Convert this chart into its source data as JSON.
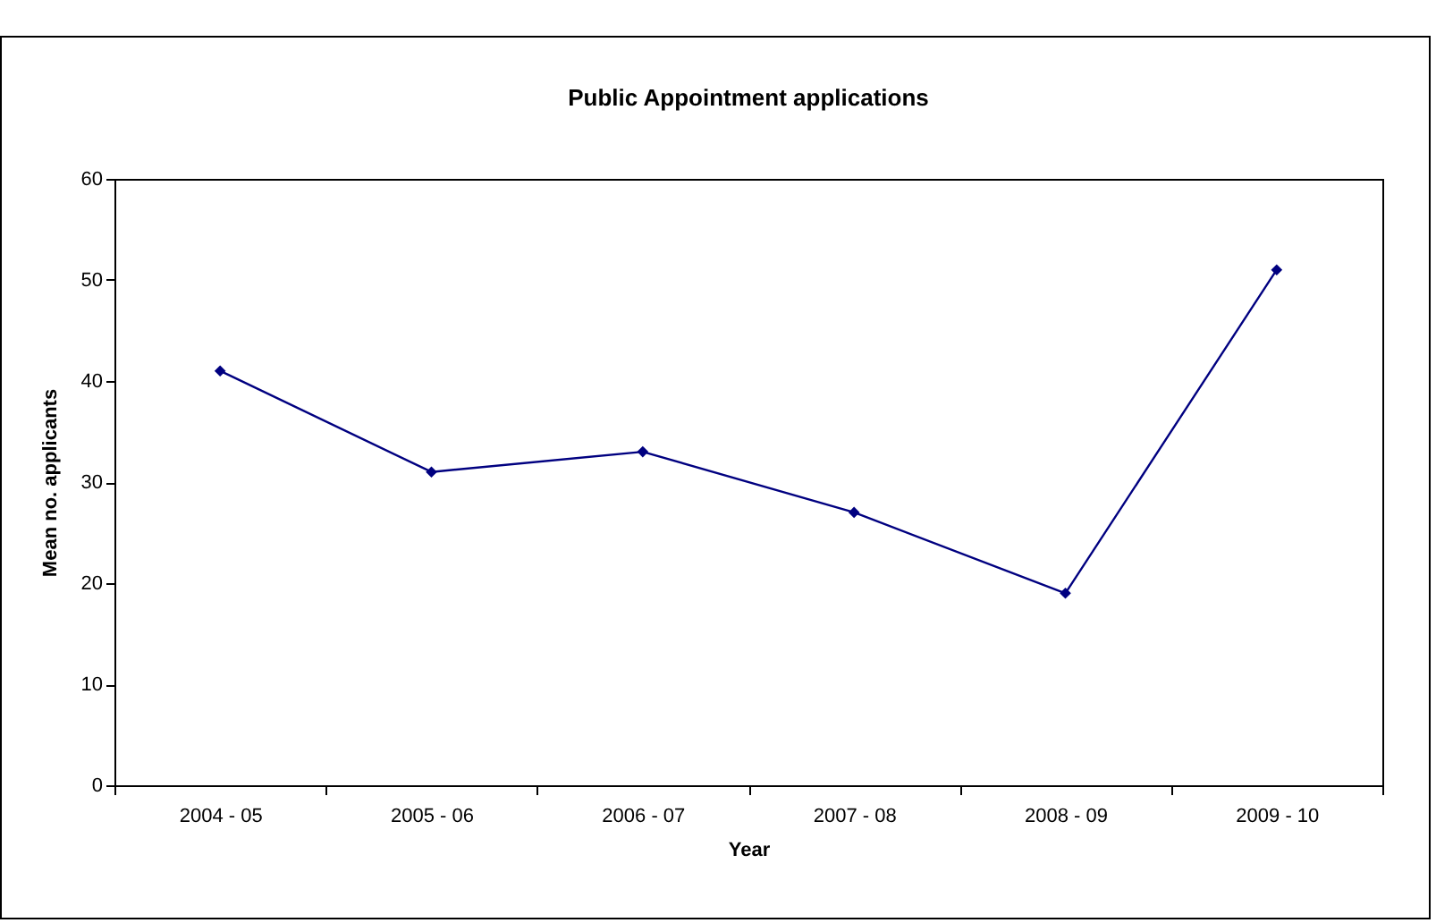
{
  "chart_data": {
    "type": "line",
    "title": "Public Appointment applications",
    "xlabel": "Year",
    "ylabel": "Mean no. applicants",
    "categories": [
      "2004 - 05",
      "2005 - 06",
      "2006 - 07",
      "2007 - 08",
      "2008 - 09",
      "2009 - 10"
    ],
    "series": [
      {
        "color": "#000080",
        "values": [
          41,
          31,
          33,
          27,
          19,
          51
        ]
      }
    ],
    "ylim": [
      0,
      60
    ],
    "yticks": [
      0,
      10,
      20,
      30,
      40,
      50,
      60
    ],
    "grid": false,
    "marker": "diamond",
    "line_style": "solid"
  }
}
